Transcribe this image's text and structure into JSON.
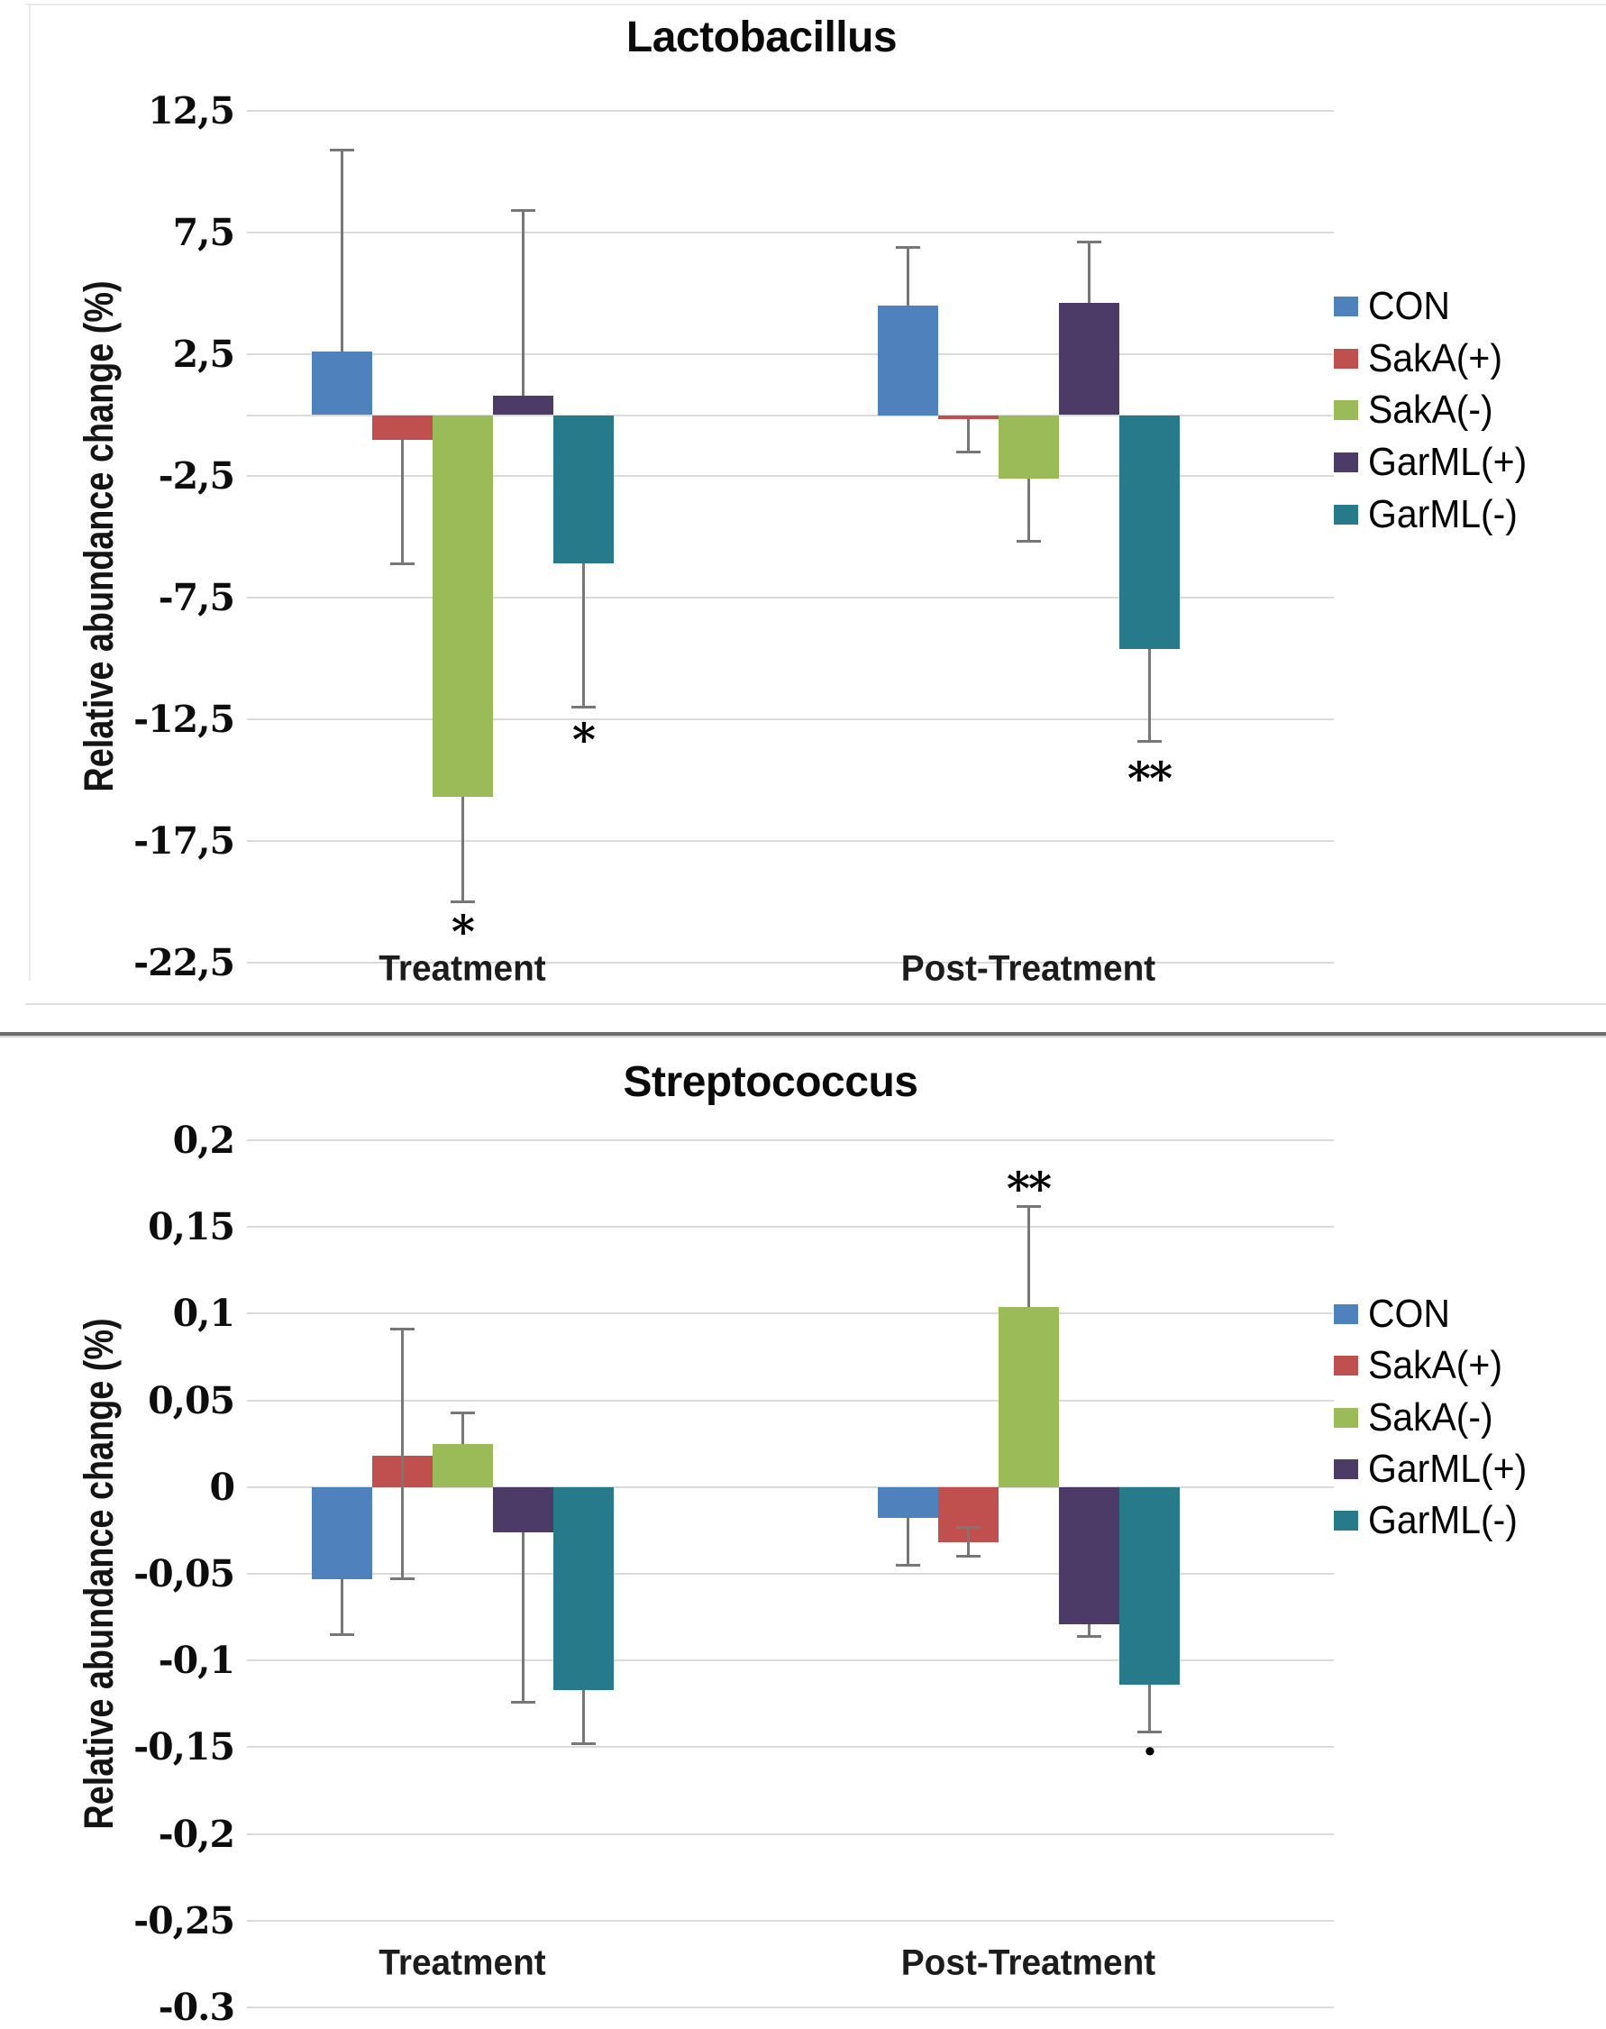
{
  "page": {
    "background": "#ffffff"
  },
  "legend_labels": [
    "CON",
    "SakA(+)",
    "SakA(-)",
    "GarML(+)",
    "GarML(-)"
  ],
  "chart_data": [
    {
      "type": "bar",
      "title": "Lactobacillus",
      "ylabel": "Relative abundance change (%)",
      "categories": [
        "Treatment",
        "Post-Treatment"
      ],
      "ylim": [
        -22.5,
        12.5
      ],
      "grid": true,
      "zero_line": true,
      "legend_position": "right",
      "decimal_separator": ",",
      "yticks": [
        {
          "v": 12.5,
          "label": "12,5"
        },
        {
          "v": 7.5,
          "label": "7,5"
        },
        {
          "v": 2.5,
          "label": "2,5"
        },
        {
          "v": -2.5,
          "label": "-2,5"
        },
        {
          "v": -7.5,
          "label": "-7,5"
        },
        {
          "v": -12.5,
          "label": "-12,5"
        },
        {
          "v": -17.5,
          "label": "-17,5"
        },
        {
          "v": -22.5,
          "label": "-22,5"
        }
      ],
      "series": [
        {
          "name": "CON",
          "color": "#4F81BD",
          "values": [
            2.6,
            4.5
          ],
          "error_low": [
            null,
            null
          ],
          "error_high": [
            10.9,
            6.9
          ],
          "sig": [
            null,
            null
          ],
          "sig_at": [
            null,
            null
          ]
        },
        {
          "name": "SakA(+)",
          "color": "#C0504D",
          "values": [
            -1.0,
            -0.15
          ],
          "error_low": [
            -6.1,
            -1.5
          ],
          "error_high": [
            null,
            null
          ],
          "sig": [
            null,
            null
          ],
          "sig_at": [
            null,
            null
          ]
        },
        {
          "name": "SakA(-)",
          "color": "#9BBB59",
          "values": [
            -15.7,
            -2.6
          ],
          "error_low": [
            -20.0,
            -5.2
          ],
          "error_high": [
            null,
            null
          ],
          "sig": [
            "*",
            null
          ],
          "sig_at": [
            -20.8,
            null
          ]
        },
        {
          "name": "GarML(+)",
          "color": "#4D3B67",
          "values": [
            0.8,
            4.6
          ],
          "error_low": [
            null,
            null
          ],
          "error_high": [
            8.4,
            7.1
          ],
          "sig": [
            null,
            null
          ],
          "sig_at": [
            null,
            null
          ]
        },
        {
          "name": "GarML(-)",
          "color": "#267A8A",
          "values": [
            -6.1,
            -9.6
          ],
          "error_low": [
            -12.0,
            -13.4
          ],
          "error_high": [
            null,
            null
          ],
          "sig": [
            "*",
            "**"
          ],
          "sig_at": [
            -12.9,
            -14.5
          ]
        }
      ]
    },
    {
      "type": "bar",
      "title": "Streptococcus",
      "ylabel": "Relative abundance change (%)",
      "categories": [
        "Treatment",
        "Post-Treatment"
      ],
      "ylim": [
        -0.3,
        0.2
      ],
      "grid": true,
      "zero_line": false,
      "legend_position": "right",
      "decimal_separator": ",",
      "yticks": [
        {
          "v": 0.2,
          "label": "0,2"
        },
        {
          "v": 0.15,
          "label": "0,15"
        },
        {
          "v": 0.1,
          "label": "0,1"
        },
        {
          "v": 0.05,
          "label": "0,05"
        },
        {
          "v": 0,
          "label": "0"
        },
        {
          "v": -0.05,
          "label": "-0,05"
        },
        {
          "v": -0.1,
          "label": "-0,1"
        },
        {
          "v": -0.15,
          "label": "-0,15"
        },
        {
          "v": -0.2,
          "label": "-0,2"
        },
        {
          "v": -0.25,
          "label": "-0,25"
        },
        {
          "v": -0.3,
          "label": "-0.3"
        }
      ],
      "series": [
        {
          "name": "CON",
          "color": "#4F81BD",
          "values": [
            -0.053,
            -0.018
          ],
          "error_low": [
            -0.085,
            -0.045
          ],
          "error_high": [
            null,
            null
          ],
          "sig": [
            null,
            null
          ],
          "sig_at": [
            null,
            null
          ]
        },
        {
          "name": "SakA(+)",
          "color": "#C0504D",
          "values": [
            0.018,
            -0.032
          ],
          "error_low": [
            -0.053,
            -0.04
          ],
          "error_high": [
            0.091,
            -0.023
          ],
          "sig": [
            null,
            null
          ],
          "sig_at": [
            null,
            null
          ]
        },
        {
          "name": "SakA(-)",
          "color": "#9BBB59",
          "values": [
            0.025,
            0.104
          ],
          "error_low": [
            null,
            null
          ],
          "error_high": [
            0.043,
            0.162
          ],
          "sig": [
            null,
            "**"
          ],
          "sig_at": [
            null,
            0.178
          ]
        },
        {
          "name": "GarML(+)",
          "color": "#4D3B67",
          "values": [
            -0.026,
            -0.079
          ],
          "error_low": [
            -0.124,
            -0.086
          ],
          "error_high": [
            null,
            null
          ],
          "sig": [
            null,
            null
          ],
          "sig_at": [
            null,
            null
          ]
        },
        {
          "name": "GarML(-)",
          "color": "#267A8A",
          "values": [
            -0.117,
            -0.114
          ],
          "error_low": [
            -0.148,
            -0.141
          ],
          "error_high": [
            null,
            null
          ],
          "sig": [
            null,
            "."
          ],
          "sig_at": [
            null,
            -0.151
          ]
        }
      ]
    }
  ]
}
